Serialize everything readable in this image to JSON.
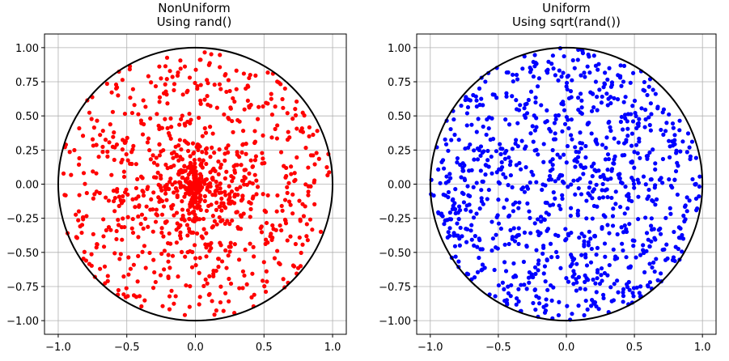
{
  "chart_data": [
    {
      "type": "scatter",
      "title": "NonUniform",
      "subtitle": "Using rand()",
      "color": "#ff0000",
      "distribution": "r = rand()",
      "point_count": 1000,
      "circle": {
        "center": [
          0,
          0
        ],
        "radius": 1,
        "color": "#000000"
      },
      "xlim": [
        -1.1,
        1.1
      ],
      "ylim": [
        -1.1,
        1.1
      ],
      "xticks": [
        -1.0,
        -0.5,
        0.0,
        0.5,
        1.0
      ],
      "yticks": [
        -1.0,
        -0.75,
        -0.5,
        -0.25,
        0.0,
        0.25,
        0.5,
        0.75,
        1.0
      ],
      "xtick_labels": [
        "−1.0",
        "−0.5",
        "0.0",
        "0.5",
        "1.0"
      ],
      "ytick_labels": [
        "−1.00",
        "−0.75",
        "−0.50",
        "−0.25",
        "0.00",
        "0.25",
        "0.50",
        "0.75",
        "1.00"
      ],
      "grid": true
    },
    {
      "type": "scatter",
      "title": "Uniform",
      "subtitle": "Using sqrt(rand())",
      "color": "#0000ff",
      "distribution": "r = sqrt(rand())",
      "point_count": 1000,
      "circle": {
        "center": [
          0,
          0
        ],
        "radius": 1,
        "color": "#000000"
      },
      "xlim": [
        -1.1,
        1.1
      ],
      "ylim": [
        -1.1,
        1.1
      ],
      "xticks": [
        -1.0,
        -0.5,
        0.0,
        0.5,
        1.0
      ],
      "yticks": [
        -1.0,
        -0.75,
        -0.5,
        -0.25,
        0.0,
        0.25,
        0.5,
        0.75,
        1.0
      ],
      "xtick_labels": [
        "−1.0",
        "−0.5",
        "0.0",
        "0.5",
        "1.0"
      ],
      "ytick_labels": [
        "−1.00",
        "−0.75",
        "−0.50",
        "−0.25",
        "0.00",
        "0.25",
        "0.50",
        "0.75",
        "1.00"
      ],
      "grid": true
    }
  ]
}
